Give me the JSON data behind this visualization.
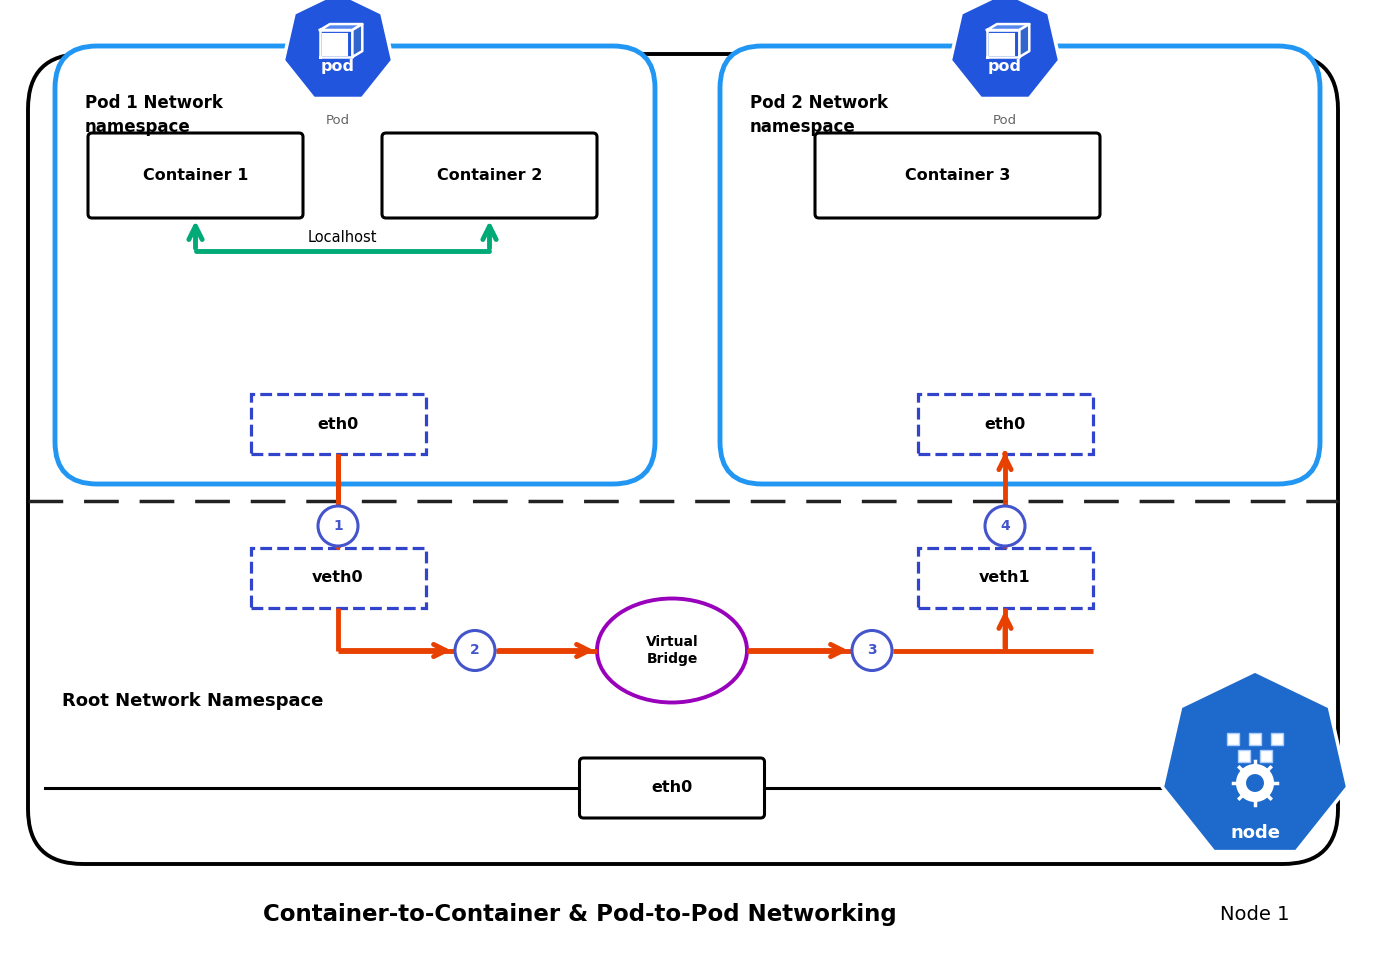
{
  "title": "Container-to-Container & Pod-to-Pod Networking",
  "node_label": "Node 1",
  "bg_color": "#ffffff",
  "outer_box_color": "#000000",
  "pod_ns_color": "#2196f3",
  "dashed_box_color": "#3344cc",
  "green_arrow_color": "#00aa77",
  "red_arrow_color": "#e84000",
  "purple_circle_color": "#9900bb",
  "step_circle_color": "#4455cc",
  "pod_hex_color": "#2255dd",
  "node_hex_color": "#1e6acc",
  "pod1_ns_label": "Pod 1 Network\nnamespace",
  "pod2_ns_label": "Pod 2 Network\nnamespace",
  "root_ns_label": "Root Network Namespace",
  "container1_label": "Container 1",
  "container2_label": "Container 2",
  "container3_label": "Container 3",
  "localhost_label": "Localhost",
  "eth0_label": "eth0",
  "veth0_label": "veth0",
  "veth1_label": "veth1",
  "bridge_label": "Virtual\nBridge",
  "pod_label": "pod",
  "pod_sublabel": "Pod",
  "node_sublabel": "node"
}
